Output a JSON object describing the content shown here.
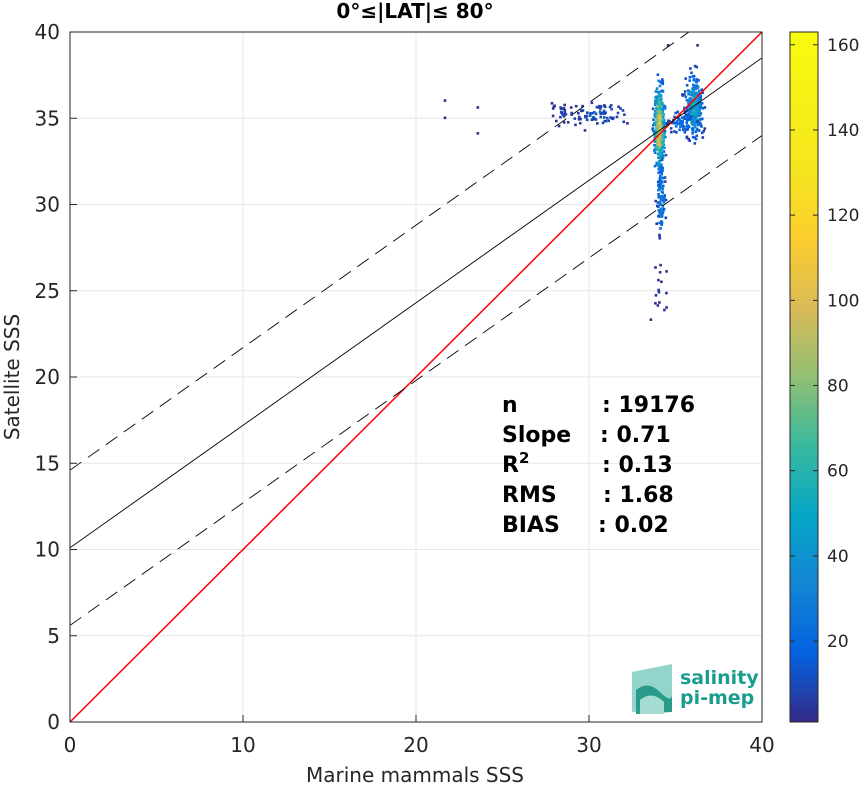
{
  "chart_data": {
    "type": "heatmap",
    "title": "0°≤|LAT|≤ 80°",
    "xlabel": "Marine mammals SSS",
    "ylabel": "Satellite SSS",
    "xlim": [
      0,
      40
    ],
    "ylim": [
      0,
      40
    ],
    "xticks": [
      "0",
      "10",
      "20",
      "30",
      "40"
    ],
    "yticks": [
      "0",
      "5",
      "10",
      "15",
      "20",
      "25",
      "30",
      "35",
      "40"
    ],
    "grid": true,
    "colorbar": {
      "range": [
        1,
        163
      ],
      "ticks": [
        "20",
        "40",
        "60",
        "80",
        "100",
        "120",
        "140",
        "160"
      ],
      "tick_values": [
        20,
        40,
        60,
        80,
        100,
        120,
        140,
        160
      ],
      "colormap": "parula"
    },
    "lines": [
      {
        "name": "1:1",
        "color": "#ff0000",
        "style": "solid",
        "intercept": 0,
        "slope": 1
      },
      {
        "name": "regression",
        "color": "#000000",
        "style": "solid",
        "intercept": 10.1,
        "slope": 0.71
      },
      {
        "name": "upper bound",
        "color": "#000000",
        "style": "dashed",
        "intercept": 14.6,
        "slope": 0.71
      },
      {
        "name": "lower bound",
        "color": "#000000",
        "style": "dashed",
        "intercept": 5.6,
        "slope": 0.71
      }
    ],
    "clusters": [
      {
        "x": 34.0,
        "y": 34.5,
        "sx": 0.2,
        "sy": 1.6,
        "n": 420,
        "peak": 120
      },
      {
        "x": 34.1,
        "y": 30.5,
        "sx": 0.15,
        "sy": 1.5,
        "n": 90,
        "peak": 40
      },
      {
        "x": 36.0,
        "y": 35.8,
        "sx": 0.35,
        "sy": 1.2,
        "n": 260,
        "peak": 60
      },
      {
        "x": 35.3,
        "y": 34.8,
        "sx": 0.5,
        "sy": 0.5,
        "n": 60,
        "peak": 30
      },
      {
        "x": 30.5,
        "y": 35.3,
        "sx": 1.3,
        "sy": 0.5,
        "n": 70,
        "peak": 15
      },
      {
        "x": 28.5,
        "y": 35.3,
        "sx": 0.5,
        "sy": 0.5,
        "n": 30,
        "peak": 10
      },
      {
        "x": 34.0,
        "y": 25.5,
        "sx": 0.3,
        "sy": 1.0,
        "n": 15,
        "peak": 5
      }
    ],
    "outliers": [
      [
        21.6,
        36.1
      ],
      [
        21.6,
        35.1
      ],
      [
        23.5,
        35.7
      ],
      [
        23.5,
        34.2
      ],
      [
        34.5,
        39.3
      ],
      [
        36.2,
        39.3
      ],
      [
        33.5,
        23.4
      ]
    ],
    "stats": [
      {
        "label": "n",
        "value": ": 19176"
      },
      {
        "label": "Slope",
        "value": ": 0.71"
      },
      {
        "label": "R",
        "sup": "2",
        "value": ": 0.13"
      },
      {
        "label": "RMS",
        "value": ": 1.68"
      },
      {
        "label": "BIAS",
        "value": ": 0.02"
      }
    ]
  },
  "logo": {
    "line1": "salinity",
    "line2": "pi-mep"
  }
}
